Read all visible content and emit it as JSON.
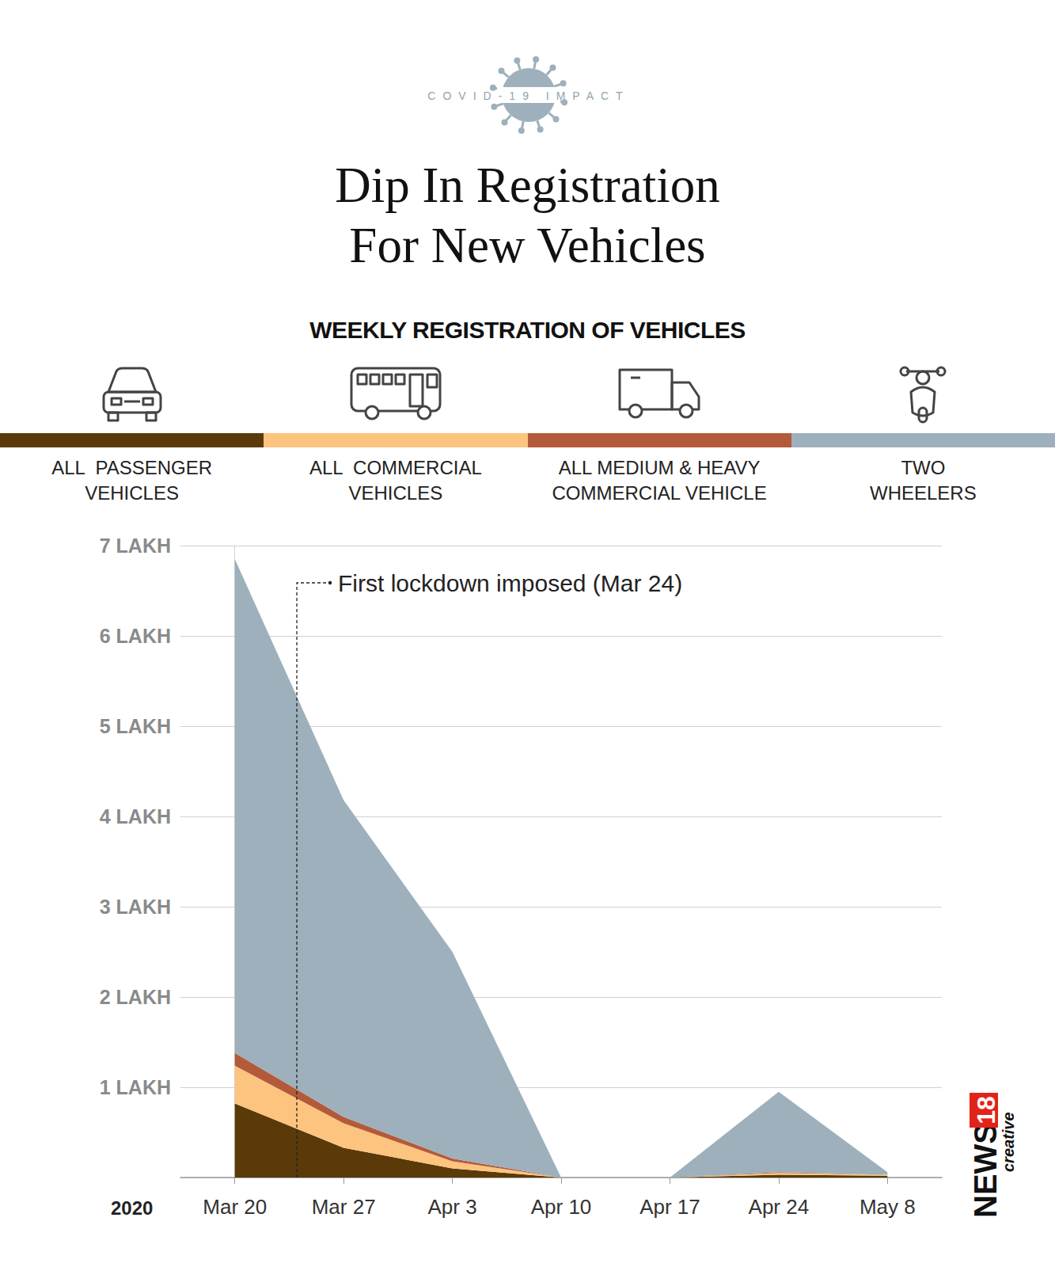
{
  "header": {
    "badge": "COVID-19 IMPACT"
  },
  "chart_data": {
    "type": "area",
    "title": "Dip In Registration\nFor New Vehicles",
    "subtitle": "WEEKLY REGISTRATION OF VEHICLES",
    "stacked": true,
    "grid": true,
    "x_label": "2020",
    "categories": [
      "Mar 20",
      "Mar 27",
      "Apr 3",
      "Apr 10",
      "Apr 17",
      "Apr 24",
      "May 8"
    ],
    "series": [
      {
        "name": "ALL  PASSENGER\nVEHICLES",
        "color": "#5a3a08",
        "values": [
          0.82,
          0.33,
          0.1,
          0,
          0,
          0.03,
          0.02
        ]
      },
      {
        "name": "ALL  COMMERCIAL\nVEHICLES",
        "color": "#fcc47e",
        "values": [
          0.42,
          0.27,
          0.08,
          0,
          0,
          0.02,
          0.01
        ]
      },
      {
        "name": "ALL MEDIUM & HEAVY\nCOMMERCIAL VEHICLE",
        "color": "#b35a3b",
        "values": [
          0.14,
          0.07,
          0.03,
          0,
          0,
          0.01,
          0
        ]
      },
      {
        "name": "TWO\nWHEELERS",
        "color": "#9db0bb",
        "values": [
          5.47,
          3.51,
          2.29,
          0,
          0,
          0.89,
          0.03
        ]
      }
    ],
    "ylim": [
      0,
      7
    ],
    "yticks": [
      {
        "value": 1,
        "label": "1 LAKH"
      },
      {
        "value": 2,
        "label": "2 LAKH"
      },
      {
        "value": 3,
        "label": "3 LAKH"
      },
      {
        "value": 4,
        "label": "4 LAKH"
      },
      {
        "value": 5,
        "label": "5 LAKH"
      },
      {
        "value": 6,
        "label": "6 LAKH"
      },
      {
        "value": 7,
        "label": "7 LAKH"
      }
    ],
    "annotation": {
      "text": "First lockdown imposed (Mar 24)",
      "x": 0.57
    }
  },
  "logo": [
    "NEWS",
    "18",
    "creative"
  ]
}
